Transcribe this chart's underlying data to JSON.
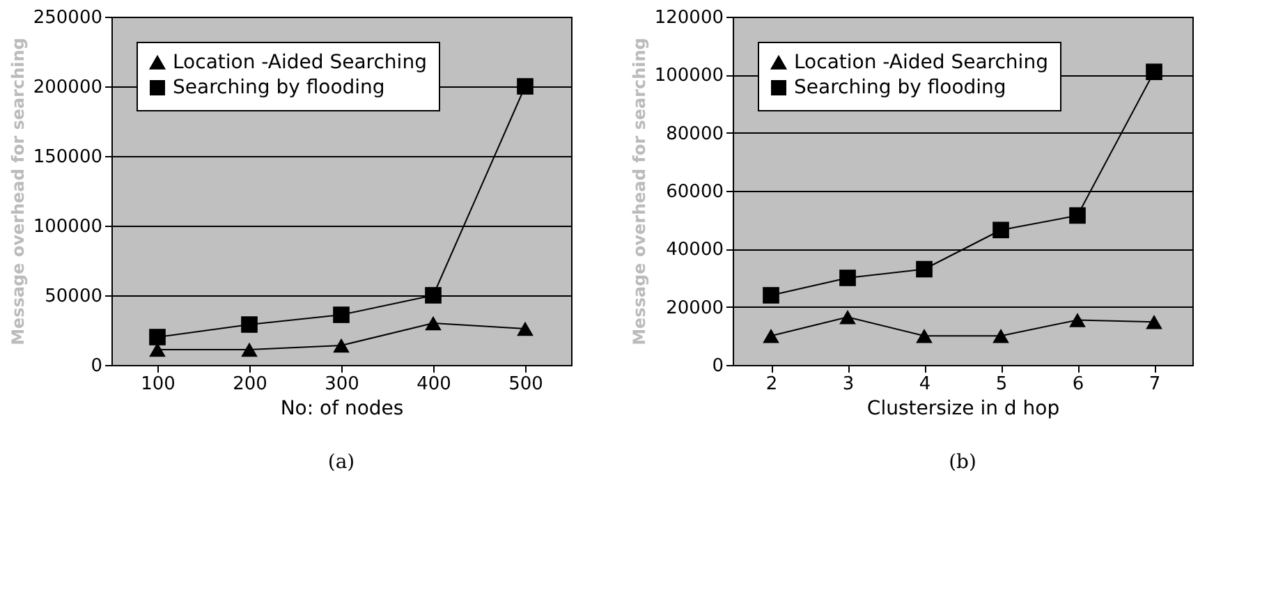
{
  "chart_data": [
    {
      "type": "line",
      "categories": [
        "100",
        "200",
        "300",
        "400",
        "500"
      ],
      "xlabel": "No: of nodes",
      "ylabel": "Message overhead for searching",
      "ylim": [
        0,
        250000
      ],
      "yticks": [
        0,
        50000,
        100000,
        150000,
        200000,
        250000
      ],
      "grid": "y",
      "legend": "top left",
      "annotations": [
        "(a)"
      ],
      "series": [
        {
          "name": "Location -Aided Searching",
          "color": "#000000",
          "marker": "triangle",
          "values": [
            11000,
            11000,
            14000,
            30000,
            26000
          ]
        },
        {
          "name": "Searching by flooding",
          "color": "#000000",
          "marker": "square",
          "values": [
            20000,
            29000,
            36000,
            50000,
            200000
          ]
        }
      ]
    },
    {
      "type": "line",
      "categories": [
        "2",
        "3",
        "4",
        "5",
        "6",
        "7"
      ],
      "xlabel": "Clustersize in d hop",
      "ylabel": "Message overhead for searching",
      "ylim": [
        0,
        120000
      ],
      "yticks": [
        0,
        20000,
        40000,
        60000,
        80000,
        100000,
        120000
      ],
      "grid": "y",
      "legend": "top left",
      "annotations": [
        "(b)"
      ],
      "series": [
        {
          "name": "Location -Aided Searching",
          "color": "#000000",
          "marker": "triangle",
          "values": [
            10000,
            16500,
            10000,
            10000,
            15500,
            14800
          ]
        },
        {
          "name": "Searching by flooding",
          "color": "#000000",
          "marker": "square",
          "values": [
            24000,
            30000,
            33000,
            46500,
            51500,
            101000
          ]
        }
      ]
    }
  ]
}
